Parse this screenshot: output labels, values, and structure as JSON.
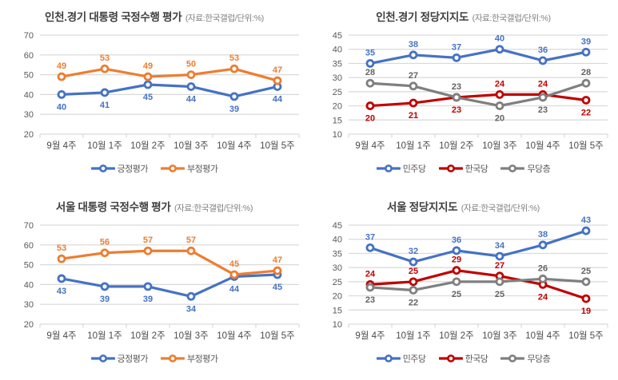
{
  "page": {
    "background": "#ffffff"
  },
  "colors": {
    "blue": "#4472C4",
    "orange": "#ED7D31",
    "red": "#C00000",
    "gray": "#7F7F7F",
    "gridline": "#D9D9D9",
    "axis_text": "#595959"
  },
  "chart_data": [
    {
      "type": "line",
      "title": "인천.경기 대통령 국정수행 평가",
      "subtitle": "(자료:한국갤럽/단위:%)",
      "categories": [
        "9월 4주",
        "10월 1주",
        "10월 2주",
        "10월 3주",
        "10월 4주",
        "10월 5주"
      ],
      "ylim": [
        20,
        70
      ],
      "ytick_step": 10,
      "grid": "horizontal",
      "legend_position": "bottom",
      "series": [
        {
          "name": "긍정평가",
          "color": "#4472C4",
          "label_color": "#4472C4",
          "values": [
            40,
            41,
            45,
            44,
            39,
            44
          ],
          "label_sides": [
            "below",
            "below",
            "below",
            "below",
            "below",
            "below"
          ]
        },
        {
          "name": "부정평가",
          "color": "#ED7D31",
          "label_color": "#ED7D31",
          "values": [
            49,
            53,
            49,
            50,
            53,
            47
          ],
          "label_sides": [
            "above",
            "above",
            "above",
            "above",
            "above",
            "above"
          ]
        }
      ]
    },
    {
      "type": "line",
      "title": "인천.경기 정당지지도",
      "subtitle": "(자료:한국갤럽/단위:%)",
      "categories": [
        "9월 4주",
        "10월 1주",
        "10월 2주",
        "10월 3주",
        "10월 4주",
        "10월 5주"
      ],
      "ylim": [
        10,
        45
      ],
      "ytick_step": 5,
      "grid": "horizontal",
      "legend_position": "bottom",
      "series": [
        {
          "name": "민주당",
          "color": "#4472C4",
          "label_color": "#4472C4",
          "values": [
            35,
            38,
            37,
            40,
            36,
            39
          ],
          "label_sides": [
            "above",
            "above",
            "above",
            "above",
            "above",
            "above"
          ]
        },
        {
          "name": "한국당",
          "color": "#C00000",
          "label_color": "#C00000",
          "values": [
            20,
            21,
            23,
            24,
            24,
            22
          ],
          "label_sides": [
            "below",
            "below",
            "below",
            "above",
            "above",
            "below"
          ]
        },
        {
          "name": "무당층",
          "color": "#7F7F7F",
          "label_color": "#636363",
          "values": [
            28,
            27,
            23,
            20,
            23,
            28
          ],
          "label_sides": [
            "above",
            "above",
            "above",
            "below",
            "below",
            "above"
          ]
        }
      ]
    },
    {
      "type": "line",
      "title": "서울 대통령 국정수행 평가",
      "subtitle": "(자료:한국갤럽/단위:%)",
      "categories": [
        "9월 4주",
        "10월 1주",
        "10월 2주",
        "10월 3주",
        "10월 4주",
        "10월 5주"
      ],
      "ylim": [
        20,
        70
      ],
      "ytick_step": 10,
      "grid": "horizontal",
      "legend_position": "bottom",
      "series": [
        {
          "name": "긍정평가",
          "color": "#4472C4",
          "label_color": "#4472C4",
          "values": [
            43,
            39,
            39,
            34,
            44,
            45
          ],
          "label_sides": [
            "below",
            "below",
            "below",
            "below",
            "below",
            "below"
          ]
        },
        {
          "name": "부정평가",
          "color": "#ED7D31",
          "label_color": "#ED7D31",
          "values": [
            53,
            56,
            57,
            57,
            45,
            47
          ],
          "label_sides": [
            "above",
            "above",
            "above",
            "above",
            "above",
            "above"
          ]
        }
      ]
    },
    {
      "type": "line",
      "title": "서울 정당지지도",
      "subtitle": "(자료:한국갤럽/단위:%)",
      "categories": [
        "9월 4주",
        "10월 1주",
        "10월 2주",
        "10월 3주",
        "10월 4주",
        "10월 5주"
      ],
      "ylim": [
        10,
        45
      ],
      "ytick_step": 5,
      "grid": "horizontal",
      "legend_position": "bottom",
      "series": [
        {
          "name": "민주당",
          "color": "#4472C4",
          "label_color": "#4472C4",
          "values": [
            37,
            32,
            36,
            34,
            38,
            43
          ],
          "label_sides": [
            "above",
            "above",
            "above",
            "above",
            "above",
            "above"
          ]
        },
        {
          "name": "한국당",
          "color": "#C00000",
          "label_color": "#C00000",
          "values": [
            24,
            25,
            29,
            27,
            24,
            19
          ],
          "label_sides": [
            "above",
            "above",
            "above",
            "above",
            "below",
            "below"
          ]
        },
        {
          "name": "무당층",
          "color": "#7F7F7F",
          "label_color": "#636363",
          "values": [
            23,
            22,
            25,
            25,
            26,
            25
          ],
          "label_sides": [
            "below",
            "below",
            "below",
            "below",
            "above",
            "above"
          ]
        }
      ]
    }
  ]
}
